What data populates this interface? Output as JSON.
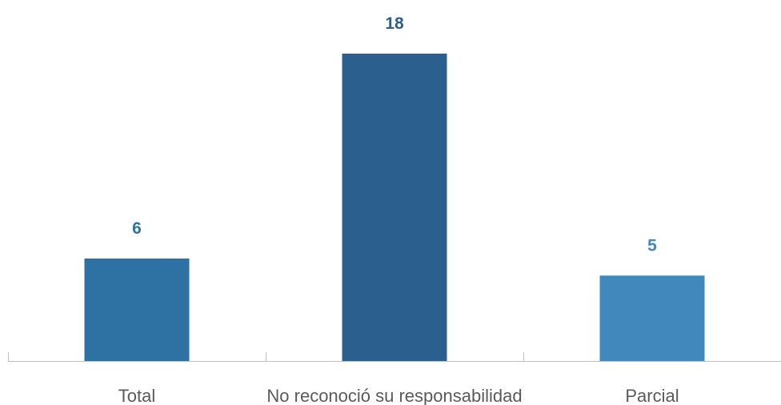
{
  "chart_data": {
    "type": "bar",
    "categories": [
      "Total",
      "No reconoció su responsabilidad",
      "Parcial"
    ],
    "values": [
      6,
      18,
      5
    ],
    "bar_colors": [
      "#2e72a3",
      "#2b5f8e",
      "#4189bd"
    ],
    "label_colors": [
      "#2e72a3",
      "#2b5f8e",
      "#4189bd"
    ],
    "axis_color": "#bfbfbf",
    "title": "",
    "xlabel": "",
    "ylabel": "",
    "ylim": [
      0,
      18
    ],
    "grid": false,
    "legend": "none",
    "data_labels": true
  }
}
